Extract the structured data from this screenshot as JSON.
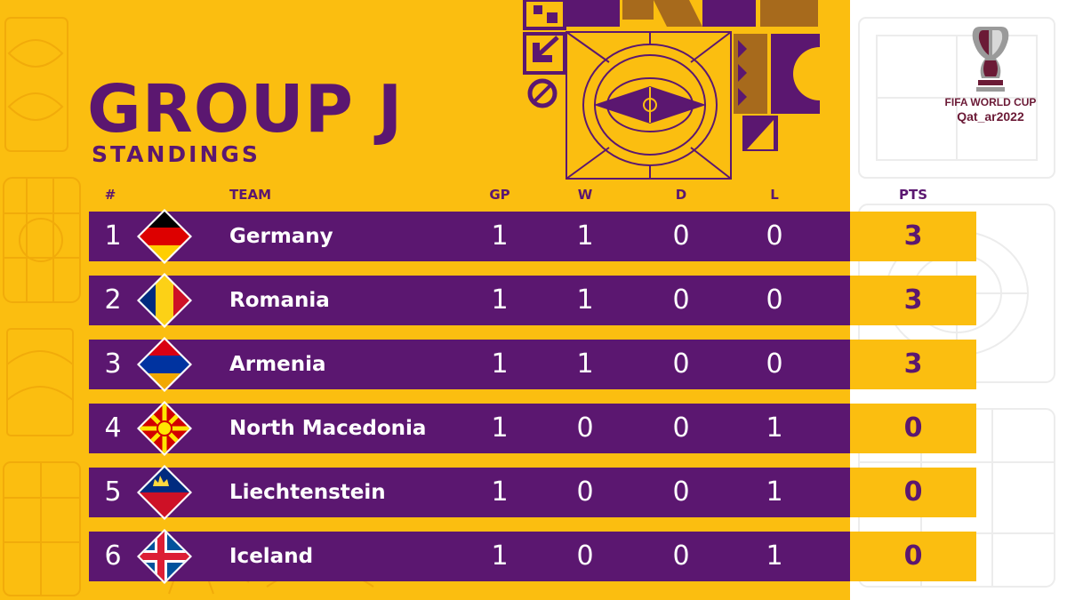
{
  "title": "GROUP J",
  "subtitle": "STANDINGS",
  "headers": {
    "rank": "#",
    "team": "TEAM",
    "gp": "GP",
    "w": "W",
    "d": "D",
    "l": "L",
    "pts": "PTS"
  },
  "rows": [
    {
      "rank": "1",
      "team": "Germany",
      "gp": "1",
      "w": "1",
      "d": "0",
      "l": "0",
      "pts": "3",
      "flag": "germany-flag"
    },
    {
      "rank": "2",
      "team": "Romania",
      "gp": "1",
      "w": "1",
      "d": "0",
      "l": "0",
      "pts": "3",
      "flag": "romania-flag"
    },
    {
      "rank": "3",
      "team": "Armenia",
      "gp": "1",
      "w": "1",
      "d": "0",
      "l": "0",
      "pts": "3",
      "flag": "armenia-flag"
    },
    {
      "rank": "4",
      "team": "North Macedonia",
      "gp": "1",
      "w": "0",
      "d": "0",
      "l": "1",
      "pts": "0",
      "flag": "north-macedonia-flag"
    },
    {
      "rank": "5",
      "team": "Liechtenstein",
      "gp": "1",
      "w": "0",
      "d": "0",
      "l": "1",
      "pts": "0",
      "flag": "liechtenstein-flag"
    },
    {
      "rank": "6",
      "team": "Iceland",
      "gp": "1",
      "w": "0",
      "d": "0",
      "l": "1",
      "pts": "0",
      "flag": "iceland-flag"
    }
  ],
  "logo": {
    "line1": "FIFA WORLD CUP",
    "line2": "Qat_ar2022"
  },
  "colors": {
    "purple": "#5b1770",
    "yellow": "#fbbe10",
    "white": "#ffffff",
    "maroon": "#6b1a36"
  }
}
